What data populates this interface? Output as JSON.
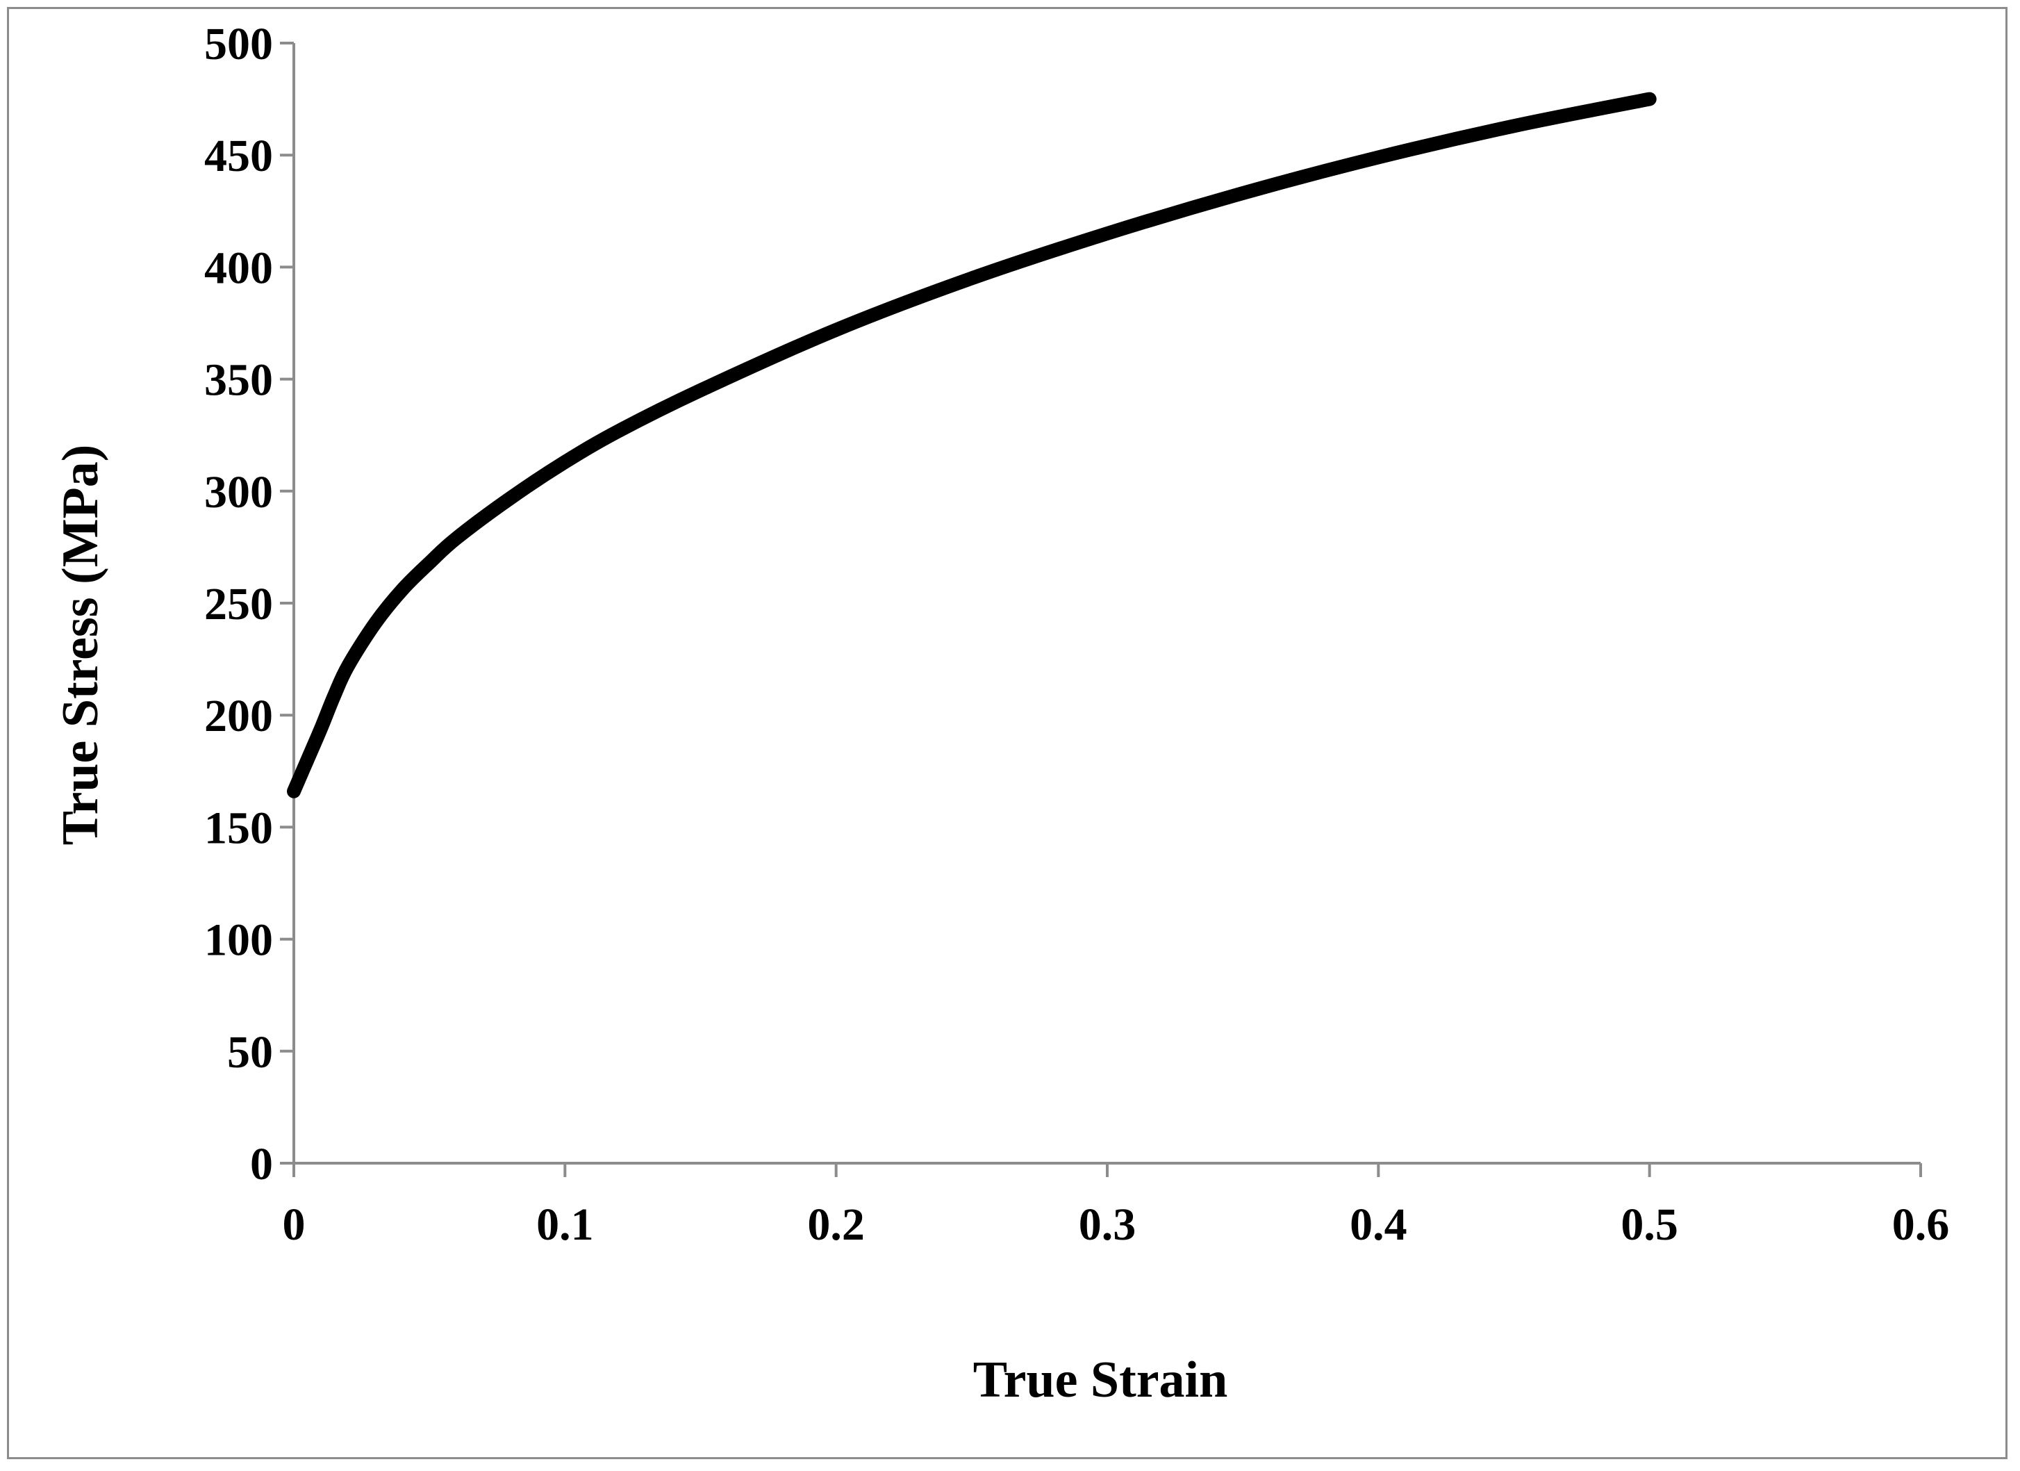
{
  "chart_data": {
    "type": "line",
    "title": "",
    "xlabel": "True Strain",
    "ylabel": "True Stress (MPa)",
    "xlim": [
      0,
      0.6
    ],
    "ylim": [
      0,
      500
    ],
    "x_ticks": [
      0,
      0.1,
      0.2,
      0.3,
      0.4,
      0.5,
      0.6
    ],
    "x_tick_labels": [
      "0",
      "0.1",
      "0.2",
      "0.3",
      "0.4",
      "0.5",
      "0.6"
    ],
    "y_ticks": [
      0,
      50,
      100,
      150,
      200,
      250,
      300,
      350,
      400,
      450,
      500
    ],
    "y_tick_labels": [
      "0",
      "50",
      "100",
      "150",
      "200",
      "250",
      "300",
      "350",
      "400",
      "450",
      "500"
    ],
    "grid": false,
    "legend": "none",
    "series": [
      {
        "color": "#000000",
        "x": [
          0,
          0.005,
          0.01,
          0.015,
          0.02,
          0.03,
          0.04,
          0.05,
          0.06,
          0.08,
          0.1,
          0.12,
          0.15,
          0.2,
          0.25,
          0.3,
          0.35,
          0.4,
          0.45,
          0.5
        ],
        "y": [
          166,
          180,
          194,
          209,
          222,
          241,
          256,
          268,
          279,
          297,
          313,
          327,
          345,
          372,
          395,
          415,
          433,
          449,
          463,
          475
        ]
      }
    ]
  }
}
